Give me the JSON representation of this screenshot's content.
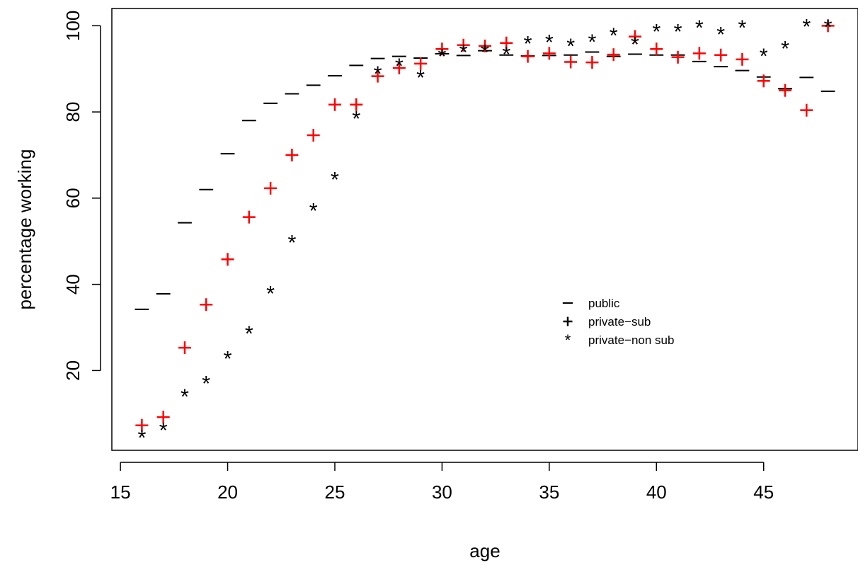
{
  "chart_data": {
    "type": "scatter",
    "title": "",
    "xlabel": "age",
    "ylabel": "percentage working",
    "xlim": [
      14.6,
      49.4
    ],
    "ylim": [
      1.5,
      104
    ],
    "x_ticks": [
      15,
      20,
      25,
      30,
      35,
      40,
      45
    ],
    "y_ticks": [
      20,
      40,
      60,
      80,
      100
    ],
    "grid": false,
    "legend_position": "center-right",
    "x": [
      16,
      17,
      18,
      19,
      20,
      21,
      22,
      23,
      24,
      25,
      26,
      27,
      28,
      29,
      30,
      31,
      32,
      33,
      34,
      35,
      36,
      37,
      38,
      39,
      40,
      41,
      42,
      43,
      44,
      45,
      46,
      47,
      48
    ],
    "series": [
      {
        "name": "public",
        "symbol": "dash",
        "color": "#000000",
        "values": [
          34.2,
          37.8,
          54.3,
          62.0,
          70.3,
          78.0,
          82.0,
          84.2,
          86.2,
          88.4,
          90.8,
          92.4,
          92.9,
          92.5,
          93.5,
          93.1,
          94.2,
          93.2,
          93.0,
          93.1,
          93.2,
          93.9,
          92.9,
          93.4,
          93.2,
          93.2,
          91.7,
          90.5,
          89.6,
          88.1,
          85.4,
          88.0,
          84.8
        ]
      },
      {
        "name": "private−sub",
        "symbol": "plus",
        "color": "#ff0000",
        "values": [
          7.3,
          9.2,
          25.3,
          35.3,
          45.8,
          55.6,
          62.3,
          70.0,
          74.6,
          81.7,
          81.7,
          88.3,
          90.2,
          91.2,
          94.6,
          95.5,
          95.3,
          96.0,
          92.9,
          93.6,
          91.6,
          91.5,
          93.3,
          97.5,
          94.6,
          92.7,
          93.6,
          93.2,
          92.2,
          87.2,
          85.0,
          80.4,
          100.0
        ]
      },
      {
        "name": "private−non sub",
        "symbol": "star",
        "color": "#00cd00",
        "values": [
          4.6,
          6.3,
          14.1,
          17.1,
          22.9,
          28.7,
          38.0,
          49.8,
          57.2,
          64.4,
          78.6,
          89.0,
          90.8,
          88.1,
          93.0,
          94.0,
          94.0,
          93.5,
          96.0,
          96.3,
          95.4,
          96.4,
          97.9,
          95.8,
          98.8,
          98.8,
          99.7,
          98.1,
          99.7,
          93.1,
          94.8,
          99.9,
          99.8
        ]
      }
    ]
  }
}
